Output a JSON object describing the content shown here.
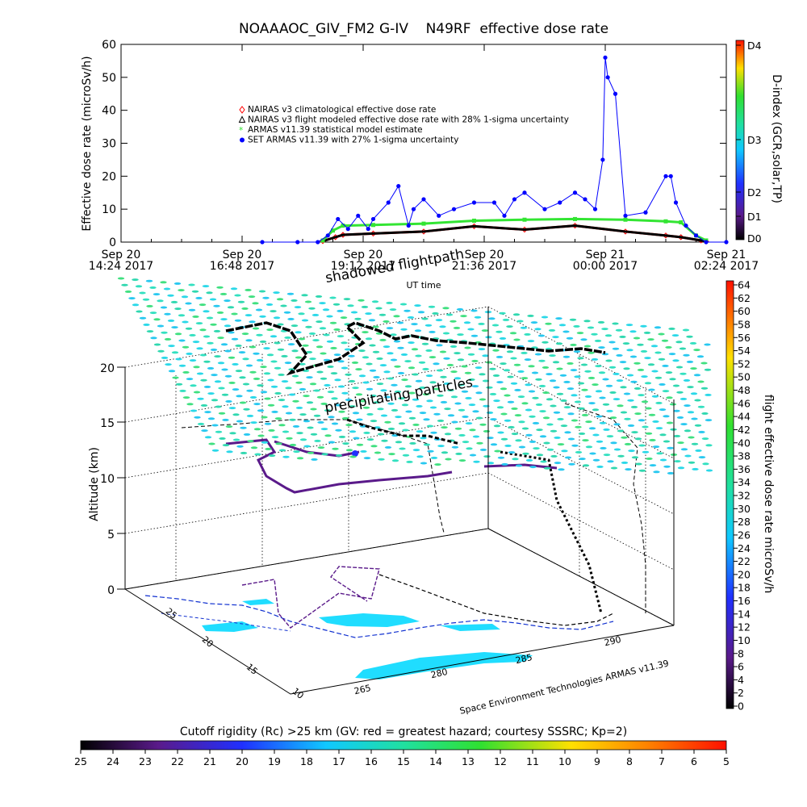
{
  "chart_data": [
    {
      "type": "line",
      "title": "NOAAAOC_GIV_FM2 G-IV    N49RF  effective dose rate",
      "ylabel": "Effective dose rate (microSv/h)",
      "xlabel": "UT time",
      "ylim": [
        0,
        60
      ],
      "yticks": [
        "0",
        "10",
        "20",
        "30",
        "40",
        "50",
        "60"
      ],
      "x_tick_labels": [
        {
          "line1": "Sep 20",
          "line2": "14:24 2017"
        },
        {
          "line1": "Sep 20",
          "line2": "16:48 2017"
        },
        {
          "line1": "Sep 20",
          "line2": "19:12 2017"
        },
        {
          "line1": "Sep 20",
          "line2": "21:36 2017"
        },
        {
          "line1": "Sep 21",
          "line2": "00:00 2017"
        },
        {
          "line1": "Sep 21",
          "line2": "02:24 2017"
        }
      ],
      "xlim_hours": [
        0,
        12
      ],
      "right_axis": {
        "label": "D-index (GCR,solar,TP)",
        "ticks": [
          "D0",
          "D1",
          "D2",
          "D3",
          "D4"
        ]
      },
      "legend_placement": "upper-left",
      "series": [
        {
          "name": "NAIRAS v3 climatological effective dose rate",
          "color": "#ff0000",
          "marker": "diamond",
          "x": [
            4.0,
            4.25,
            4.4,
            5.0,
            6.0,
            7.0,
            8.0,
            9.0,
            10.0,
            10.8,
            11.1,
            11.5,
            11.6
          ],
          "y": [
            0.3,
            1.5,
            2.2,
            2.6,
            3.2,
            4.8,
            3.8,
            5.0,
            3.2,
            2.0,
            1.5,
            0.5,
            0.2
          ]
        },
        {
          "name": "NAIRAS v3 flight modeled effective dose rate with 28% 1-sigma uncertainty",
          "color": "#000000",
          "marker": "triangle",
          "x": [
            4.0,
            4.25,
            4.4,
            5.0,
            6.0,
            7.0,
            8.0,
            9.0,
            10.0,
            10.8,
            11.1,
            11.5,
            11.6
          ],
          "y": [
            0.3,
            1.5,
            2.2,
            2.6,
            3.2,
            4.8,
            3.8,
            5.0,
            3.2,
            2.0,
            1.5,
            0.5,
            0.2
          ]
        },
        {
          "name": "ARMAS v11.39 statistical model estimate",
          "color": "#33e533",
          "marker": "asterisk",
          "x": [
            4.0,
            4.2,
            4.4,
            5.0,
            6.0,
            7.0,
            8.0,
            9.0,
            10.0,
            10.8,
            11.1,
            11.4,
            11.6
          ],
          "y": [
            0.5,
            3.5,
            5.0,
            5.2,
            5.6,
            6.5,
            6.8,
            7.0,
            6.8,
            6.3,
            6.0,
            2.0,
            0.5
          ]
        },
        {
          "name": "SET ARMAS v11.39 with 27% 1-sigma uncertainty",
          "color": "#0000ff",
          "marker": "circle",
          "x": [
            2.8,
            3.5,
            3.9,
            4.1,
            4.3,
            4.5,
            4.7,
            4.9,
            5.0,
            5.3,
            5.5,
            5.7,
            5.8,
            6.0,
            6.3,
            6.6,
            7.0,
            7.4,
            7.6,
            7.8,
            8.0,
            8.4,
            8.7,
            9.0,
            9.2,
            9.4,
            9.55,
            9.6,
            9.65,
            9.8,
            10.0,
            10.4,
            10.8,
            10.9,
            11.0,
            11.2,
            11.4,
            11.6,
            12.0
          ],
          "y": [
            0,
            0,
            0,
            2,
            7,
            4,
            8,
            4,
            7,
            12,
            17,
            5,
            10,
            13,
            8,
            10,
            12,
            12,
            8,
            13,
            15,
            10,
            12,
            15,
            13,
            10,
            25,
            56,
            50,
            45,
            8,
            9,
            20,
            20,
            12,
            5,
            2,
            0,
            0
          ]
        }
      ]
    },
    {
      "type": "scatter",
      "title": "",
      "ylabel": "Altitude (km)",
      "zticks": [
        "0",
        "5",
        "10",
        "15",
        "20"
      ],
      "lat_ticks": [
        "25",
        "20",
        "15",
        "10"
      ],
      "lon_ticks": [
        "265",
        "280",
        "285",
        "290"
      ],
      "annotations": [
        "precipitating particles",
        "shadowed flightpath"
      ],
      "credit": "Space Environment Technologies ARMAS v11.39",
      "right_colorbar": {
        "label": "flight effective dose rate microSv/h",
        "ticks": [
          "0",
          "2",
          "4",
          "6",
          "8",
          "10",
          "12",
          "14",
          "16",
          "18",
          "20",
          "22",
          "24",
          "26",
          "28",
          "30",
          "32",
          "34",
          "36",
          "38",
          "40",
          "42",
          "44",
          "46",
          "48",
          "50",
          "52",
          "54",
          "56",
          "58",
          "60",
          "62",
          "64"
        ]
      },
      "bottom_colorbar": {
        "label": "Cutoff rigidity (Rc) >25 km (GV: red = greatest hazard; courtesy SSSRC; Kp=2)",
        "ticks": [
          "25",
          "24",
          "23",
          "22",
          "21",
          "20",
          "19",
          "18",
          "17",
          "16",
          "15",
          "14",
          "13",
          "12",
          "11",
          "10",
          "9",
          "8",
          "7",
          "6",
          "5"
        ]
      },
      "grid": true,
      "colors": {
        "particles": "#33e0c0",
        "flightpath": "#000000",
        "shadow": "#5a1a8a"
      }
    }
  ]
}
